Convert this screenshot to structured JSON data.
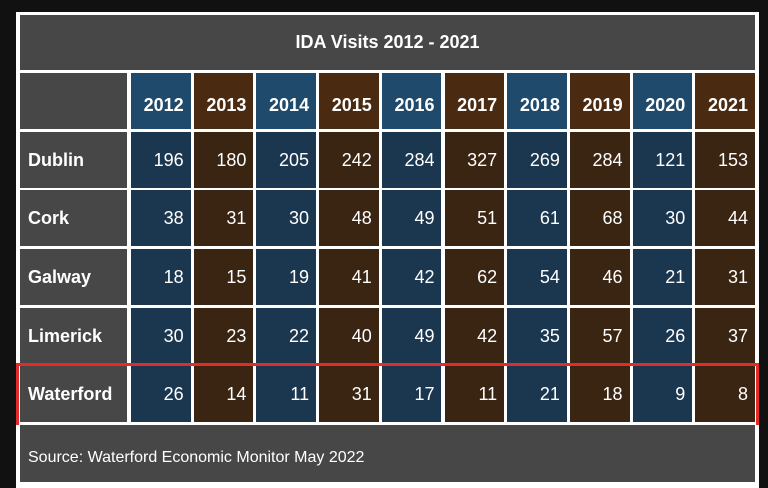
{
  "chart_data": {
    "type": "table",
    "title": "IDA Visits 2012 - 2021",
    "columns": [
      "2012",
      "2013",
      "2014",
      "2015",
      "2016",
      "2017",
      "2018",
      "2019",
      "2020",
      "2021"
    ],
    "rows": [
      {
        "label": "Dublin",
        "values": [
          196,
          180,
          205,
          242,
          284,
          327,
          269,
          284,
          121,
          153
        ]
      },
      {
        "label": "Cork",
        "values": [
          38,
          31,
          30,
          48,
          49,
          51,
          61,
          68,
          30,
          44
        ]
      },
      {
        "label": "Galway",
        "values": [
          18,
          15,
          19,
          41,
          42,
          62,
          54,
          46,
          21,
          31
        ]
      },
      {
        "label": "Limerick",
        "values": [
          30,
          23,
          22,
          40,
          49,
          42,
          35,
          57,
          26,
          37
        ]
      },
      {
        "label": "Waterford",
        "values": [
          26,
          14,
          11,
          31,
          17,
          11,
          21,
          18,
          9,
          8
        ]
      }
    ],
    "highlighted_row": "Waterford",
    "source": "Source: Waterford Economic Monitor May 2022"
  },
  "colors": {
    "header_blue": "#1f4a6b",
    "header_brown": "#4a2a10",
    "cell_blue": "#1b3750",
    "cell_brown": "#3a2412",
    "gray": "#474747",
    "highlight": "#e32b2b"
  }
}
